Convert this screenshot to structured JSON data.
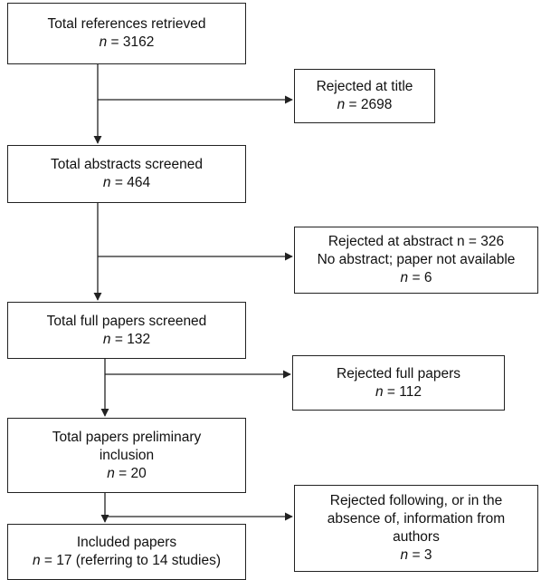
{
  "boxes": {
    "total_refs": {
      "title": "Total references retrieved",
      "n_prefix": "n",
      "n_value": " = 3162"
    },
    "rejected_title": {
      "title": "Rejected at title",
      "n_prefix": "n",
      "n_value": " = 2698"
    },
    "abstracts": {
      "title": "Total abstracts screened",
      "n_prefix": "n",
      "n_value": " = 464"
    },
    "rejected_abstract": {
      "line1": "Rejected at abstract n = 326",
      "line2": "No abstract; paper not available",
      "n_prefix": "n",
      "n_value": " = 6"
    },
    "full_papers": {
      "title": "Total full papers screened",
      "n_prefix": "n",
      "n_value": " = 132"
    },
    "rejected_full": {
      "title": "Rejected full papers",
      "n_prefix": "n",
      "n_value": " = 112"
    },
    "prelim": {
      "line1": "Total papers preliminary",
      "line2": "inclusion",
      "n_prefix": "n",
      "n_value": " = 20"
    },
    "rejected_following": {
      "line1": "Rejected following, or in the",
      "line2": "absence of, information from",
      "line3": "authors",
      "n_prefix": "n",
      "n_value": " = 3"
    },
    "included": {
      "title": "Included papers",
      "n_prefix": "n",
      "n_value": " = 17 (referring to 14 studies)"
    }
  },
  "colors": {
    "line": "#222222",
    "box_border": "#222222",
    "background": "#ffffff"
  }
}
